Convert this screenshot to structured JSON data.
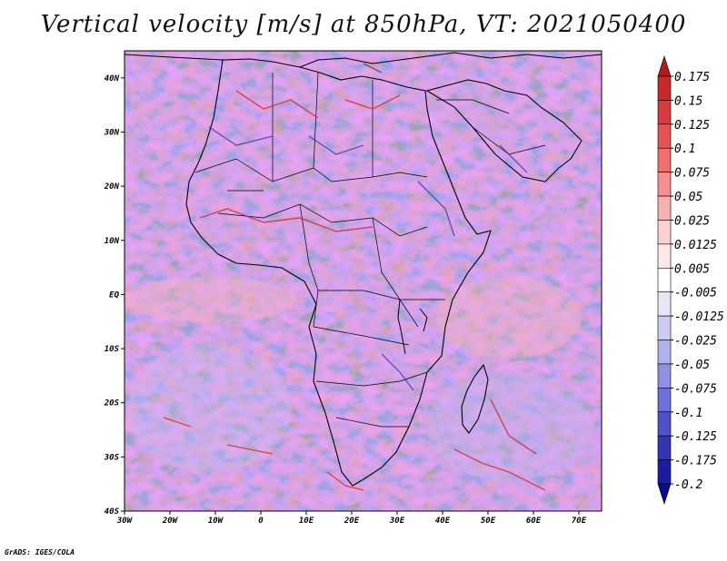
{
  "title": "Vertical velocity [m/s] at 850hPa, VT: 2021050400",
  "credit": "GrADS: IGES/COLA",
  "map": {
    "lon_range": [
      -30,
      75
    ],
    "lat_range": [
      -40,
      45
    ],
    "lon_ticks": [
      "30W",
      "20W",
      "10W",
      "0",
      "10E",
      "20E",
      "30E",
      "40E",
      "50E",
      "60E",
      "70E"
    ],
    "lat_ticks": [
      "40N",
      "30N",
      "20N",
      "10N",
      "EQ",
      "10S",
      "20S",
      "30S",
      "40S"
    ],
    "background_color": "#e8e8f6"
  },
  "colorbar": {
    "labels": [
      "0.175",
      "0.15",
      "0.125",
      "0.1",
      "0.075",
      "0.05",
      "0.025",
      "0.0125",
      "0.005",
      "-0.005",
      "-0.0125",
      "-0.025",
      "-0.05",
      "-0.075",
      "-0.1",
      "-0.125",
      "-0.175",
      "-0.2"
    ],
    "colors": [
      "#b01c1c",
      "#c42a2a",
      "#d63c3c",
      "#e45454",
      "#ee7070",
      "#f49090",
      "#f8b0b0",
      "#fbd0d0",
      "#fde8e8",
      "#ffffff",
      "#e6e6f8",
      "#ccccf2",
      "#b0b0ec",
      "#9090e2",
      "#7070d8",
      "#5050c8",
      "#3434b4",
      "#1c1ca0",
      "#0c0c88"
    ]
  }
}
